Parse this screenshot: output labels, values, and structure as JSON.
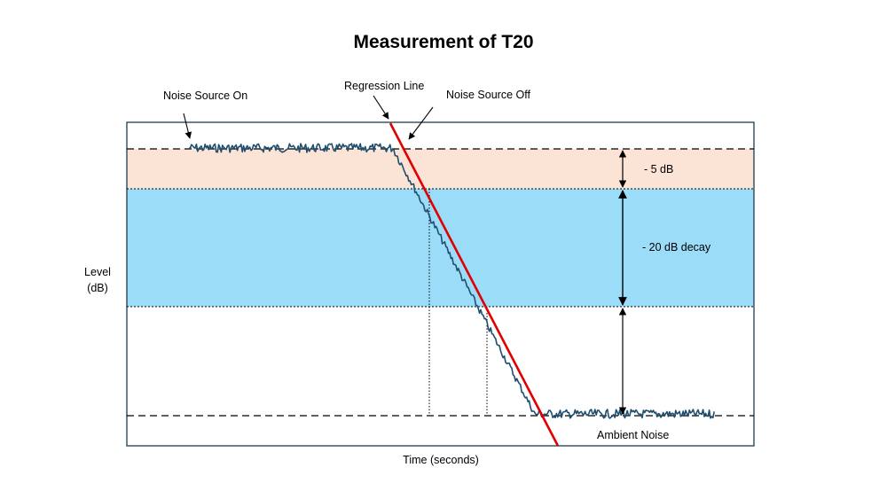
{
  "title": "Measurement of T20",
  "labels": {
    "noise_source_on": "Noise Source On",
    "regression_line": "Regression Line",
    "noise_source_off": "Noise Source Off",
    "ambient_noise": "Ambient Noise",
    "minus_5db": "- 5 dB",
    "minus_20db": "- 20 dB decay",
    "ylabel_line1": "Level",
    "ylabel_line2": "(dB)",
    "xlabel": "Time (seconds)"
  },
  "colors": {
    "signal": "#1f4e6e",
    "regression": "#e00000",
    "band_5db": "#fbe3d6",
    "band_20db": "#9bdcf8",
    "frame": "#1f3b4d"
  }
}
